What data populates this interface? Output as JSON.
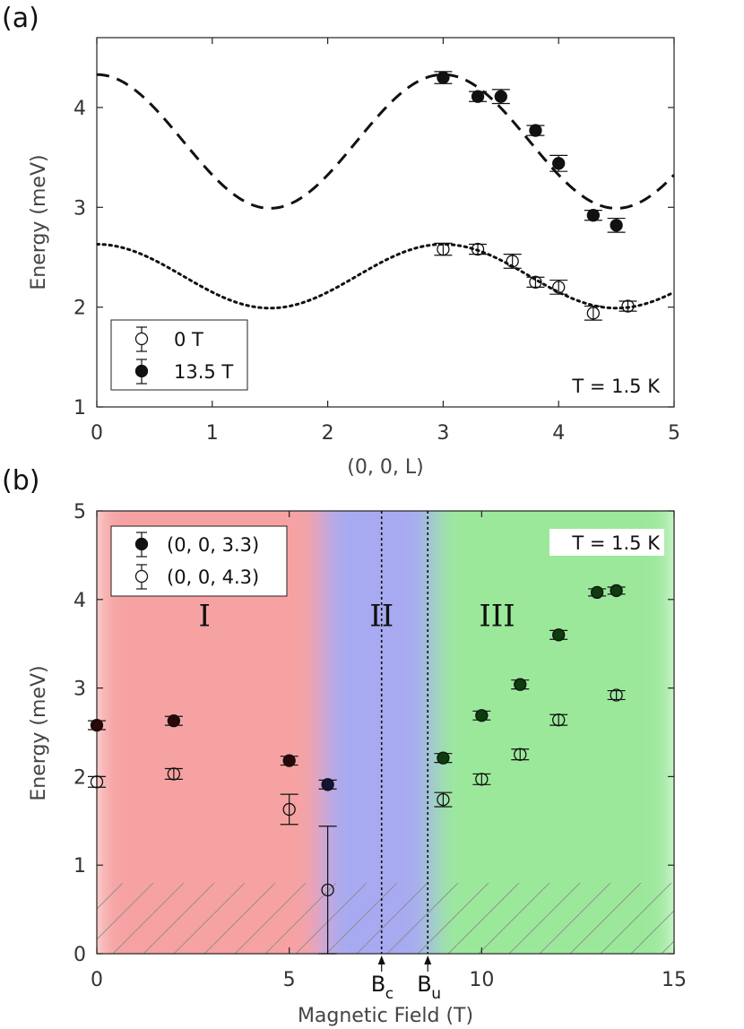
{
  "chart_data": [
    {
      "type": "scatter",
      "panel_label": "(a)",
      "xlabel": "(0, 0, L)",
      "ylabel": "Energy (meV)",
      "xlim": [
        0,
        5
      ],
      "ylim": [
        1,
        4.7
      ],
      "xticks": [
        "0",
        "1",
        "2",
        "3",
        "4",
        "5"
      ],
      "yticks": [
        "1",
        "2",
        "3",
        "4"
      ],
      "annotation": "T = 1.5 K",
      "legend_position": "bottom-left",
      "series": [
        {
          "name": "0 T",
          "marker": "open-circle",
          "x": [
            3.0,
            3.3,
            3.6,
            3.8,
            4.0,
            4.3,
            4.6
          ],
          "y": [
            2.58,
            2.58,
            2.46,
            2.25,
            2.2,
            1.94,
            2.01
          ],
          "err": [
            0.06,
            0.05,
            0.07,
            0.05,
            0.07,
            0.07,
            0.05
          ]
        },
        {
          "name": "13.5 T",
          "marker": "filled-circle",
          "x": [
            3.0,
            3.3,
            3.5,
            3.8,
            4.0,
            4.3,
            4.5
          ],
          "y": [
            4.3,
            4.11,
            4.11,
            3.77,
            3.44,
            2.92,
            2.82
          ],
          "err": [
            0.06,
            0.05,
            0.07,
            0.05,
            0.08,
            0.05,
            0.07
          ]
        }
      ],
      "curves": [
        {
          "name": "dashed-fit",
          "style": "dashed",
          "mean": 3.66,
          "amplitude": 0.67,
          "period": 3.0
        },
        {
          "name": "dotted-fit",
          "style": "dotted",
          "mean": 2.31,
          "amplitude": 0.32,
          "period": 3.0
        }
      ]
    },
    {
      "type": "scatter",
      "panel_label": "(b)",
      "xlabel": "Magnetic Field (T)",
      "ylabel": "Energy (meV)",
      "xlim": [
        0,
        15
      ],
      "ylim": [
        0,
        5
      ],
      "xticks": [
        "0",
        "5",
        "10",
        "15"
      ],
      "yticks": [
        "0",
        "1",
        "2",
        "3",
        "4",
        "5"
      ],
      "annotation": "T = 1.5 K",
      "legend_position": "top-left",
      "regions": [
        {
          "label": "I",
          "from": 0,
          "to": 5.9,
          "color": "#f6a2a2",
          "label_x": 2.8
        },
        {
          "label": "II",
          "from": 5.9,
          "to": 8.8,
          "color": "#a7aaf0",
          "label_x": 7.4
        },
        {
          "label": "III",
          "from": 8.8,
          "to": 15,
          "color": "#9be89b",
          "label_x": 10.4
        }
      ],
      "hatch_below": 0.8,
      "critical_fields": [
        {
          "symbol": "B",
          "subscript": "c",
          "x": 7.4
        },
        {
          "symbol": "B",
          "subscript": "u",
          "x": 8.6
        }
      ],
      "series": [
        {
          "name": "(0, 0, 3.3)",
          "marker": "filled-circle",
          "x": [
            0,
            2,
            5,
            6,
            9,
            10,
            11,
            12,
            13,
            13.5
          ],
          "y": [
            2.58,
            2.63,
            2.18,
            1.91,
            2.21,
            2.69,
            3.04,
            3.6,
            4.08,
            4.1
          ],
          "err": [
            0.05,
            0.05,
            0.05,
            0.05,
            0.05,
            0.05,
            0.05,
            0.05,
            0.04,
            0.04
          ]
        },
        {
          "name": "(0, 0, 4.3)",
          "marker": "open-circle",
          "x": [
            0,
            2,
            5,
            6,
            9,
            10,
            11,
            12,
            13.5
          ],
          "y": [
            1.94,
            2.03,
            1.63,
            0.72,
            1.74,
            1.97,
            2.25,
            2.64,
            2.92
          ],
          "err": [
            0.06,
            0.06,
            0.17,
            0.72,
            0.08,
            0.06,
            0.06,
            0.06,
            0.05
          ]
        }
      ]
    }
  ]
}
